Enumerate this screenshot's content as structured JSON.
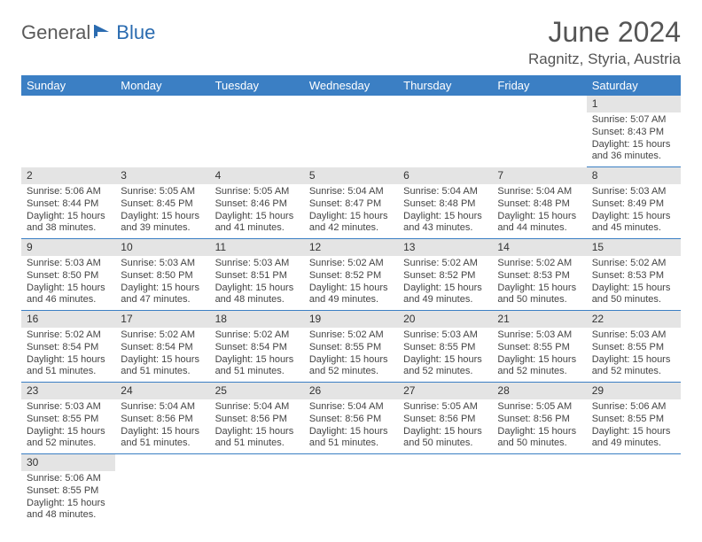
{
  "brand": {
    "part1": "General",
    "part2": "Blue"
  },
  "title": "June 2024",
  "location": "Ragnitz, Styria, Austria",
  "colors": {
    "header_bg": "#3b7fc4",
    "header_text": "#ffffff",
    "daynum_bg": "#e4e4e4",
    "row_divider": "#3b7fc4",
    "brand_gray": "#5a5a5a",
    "brand_blue": "#2a6bb0",
    "text": "#444444"
  },
  "days_of_week": [
    "Sunday",
    "Monday",
    "Tuesday",
    "Wednesday",
    "Thursday",
    "Friday",
    "Saturday"
  ],
  "field_labels": {
    "sunrise": "Sunrise:",
    "sunset": "Sunset:",
    "daylight": "Daylight:"
  },
  "weeks": [
    [
      null,
      null,
      null,
      null,
      null,
      null,
      {
        "n": "1",
        "sunrise": "5:07 AM",
        "sunset": "8:43 PM",
        "daylight": "15 hours and 36 minutes."
      }
    ],
    [
      {
        "n": "2",
        "sunrise": "5:06 AM",
        "sunset": "8:44 PM",
        "daylight": "15 hours and 38 minutes."
      },
      {
        "n": "3",
        "sunrise": "5:05 AM",
        "sunset": "8:45 PM",
        "daylight": "15 hours and 39 minutes."
      },
      {
        "n": "4",
        "sunrise": "5:05 AM",
        "sunset": "8:46 PM",
        "daylight": "15 hours and 41 minutes."
      },
      {
        "n": "5",
        "sunrise": "5:04 AM",
        "sunset": "8:47 PM",
        "daylight": "15 hours and 42 minutes."
      },
      {
        "n": "6",
        "sunrise": "5:04 AM",
        "sunset": "8:48 PM",
        "daylight": "15 hours and 43 minutes."
      },
      {
        "n": "7",
        "sunrise": "5:04 AM",
        "sunset": "8:48 PM",
        "daylight": "15 hours and 44 minutes."
      },
      {
        "n": "8",
        "sunrise": "5:03 AM",
        "sunset": "8:49 PM",
        "daylight": "15 hours and 45 minutes."
      }
    ],
    [
      {
        "n": "9",
        "sunrise": "5:03 AM",
        "sunset": "8:50 PM",
        "daylight": "15 hours and 46 minutes."
      },
      {
        "n": "10",
        "sunrise": "5:03 AM",
        "sunset": "8:50 PM",
        "daylight": "15 hours and 47 minutes."
      },
      {
        "n": "11",
        "sunrise": "5:03 AM",
        "sunset": "8:51 PM",
        "daylight": "15 hours and 48 minutes."
      },
      {
        "n": "12",
        "sunrise": "5:02 AM",
        "sunset": "8:52 PM",
        "daylight": "15 hours and 49 minutes."
      },
      {
        "n": "13",
        "sunrise": "5:02 AM",
        "sunset": "8:52 PM",
        "daylight": "15 hours and 49 minutes."
      },
      {
        "n": "14",
        "sunrise": "5:02 AM",
        "sunset": "8:53 PM",
        "daylight": "15 hours and 50 minutes."
      },
      {
        "n": "15",
        "sunrise": "5:02 AM",
        "sunset": "8:53 PM",
        "daylight": "15 hours and 50 minutes."
      }
    ],
    [
      {
        "n": "16",
        "sunrise": "5:02 AM",
        "sunset": "8:54 PM",
        "daylight": "15 hours and 51 minutes."
      },
      {
        "n": "17",
        "sunrise": "5:02 AM",
        "sunset": "8:54 PM",
        "daylight": "15 hours and 51 minutes."
      },
      {
        "n": "18",
        "sunrise": "5:02 AM",
        "sunset": "8:54 PM",
        "daylight": "15 hours and 51 minutes."
      },
      {
        "n": "19",
        "sunrise": "5:02 AM",
        "sunset": "8:55 PM",
        "daylight": "15 hours and 52 minutes."
      },
      {
        "n": "20",
        "sunrise": "5:03 AM",
        "sunset": "8:55 PM",
        "daylight": "15 hours and 52 minutes."
      },
      {
        "n": "21",
        "sunrise": "5:03 AM",
        "sunset": "8:55 PM",
        "daylight": "15 hours and 52 minutes."
      },
      {
        "n": "22",
        "sunrise": "5:03 AM",
        "sunset": "8:55 PM",
        "daylight": "15 hours and 52 minutes."
      }
    ],
    [
      {
        "n": "23",
        "sunrise": "5:03 AM",
        "sunset": "8:55 PM",
        "daylight": "15 hours and 52 minutes."
      },
      {
        "n": "24",
        "sunrise": "5:04 AM",
        "sunset": "8:56 PM",
        "daylight": "15 hours and 51 minutes."
      },
      {
        "n": "25",
        "sunrise": "5:04 AM",
        "sunset": "8:56 PM",
        "daylight": "15 hours and 51 minutes."
      },
      {
        "n": "26",
        "sunrise": "5:04 AM",
        "sunset": "8:56 PM",
        "daylight": "15 hours and 51 minutes."
      },
      {
        "n": "27",
        "sunrise": "5:05 AM",
        "sunset": "8:56 PM",
        "daylight": "15 hours and 50 minutes."
      },
      {
        "n": "28",
        "sunrise": "5:05 AM",
        "sunset": "8:56 PM",
        "daylight": "15 hours and 50 minutes."
      },
      {
        "n": "29",
        "sunrise": "5:06 AM",
        "sunset": "8:55 PM",
        "daylight": "15 hours and 49 minutes."
      }
    ],
    [
      {
        "n": "30",
        "sunrise": "5:06 AM",
        "sunset": "8:55 PM",
        "daylight": "15 hours and 48 minutes."
      },
      null,
      null,
      null,
      null,
      null,
      null
    ]
  ]
}
